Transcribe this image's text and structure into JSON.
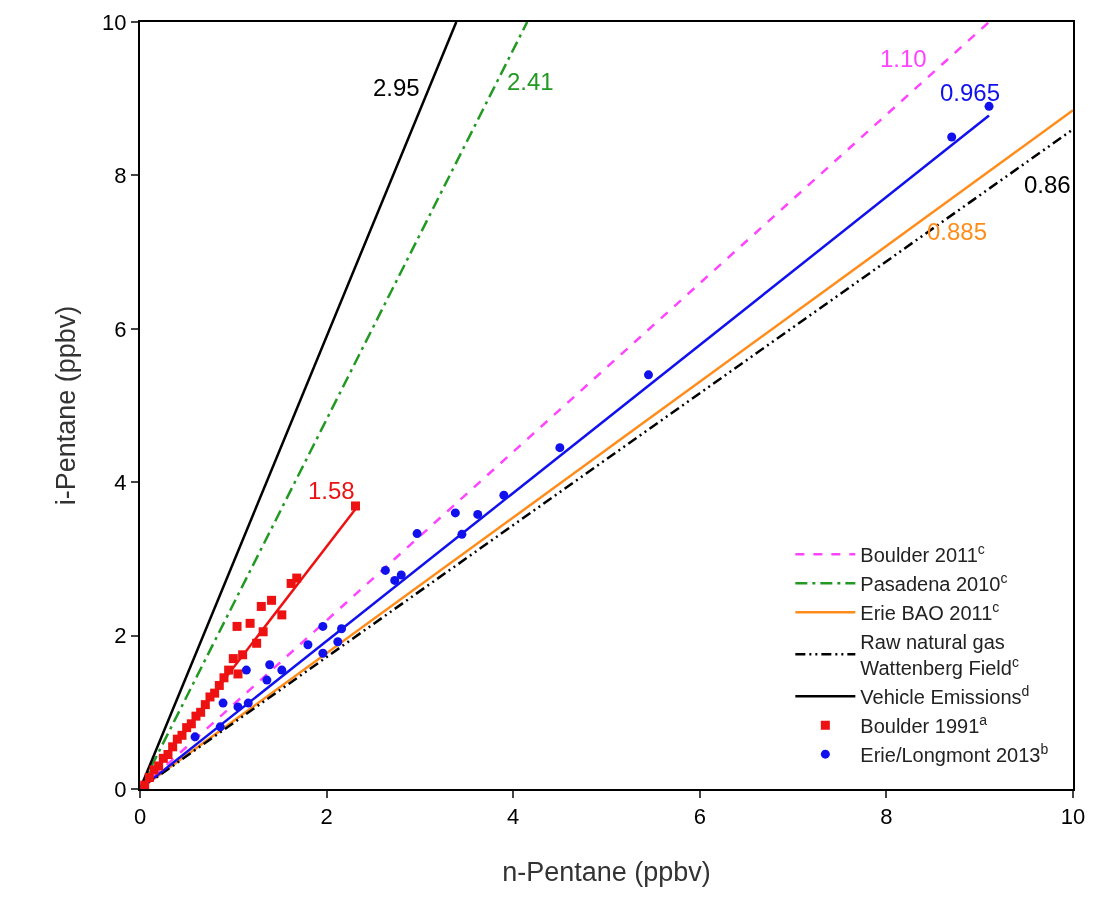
{
  "chart_data": {
    "type": "scatter",
    "xlabel": "n-Pentane (ppbv)",
    "ylabel": "i-Pentane (ppbv)",
    "xlim": [
      0,
      10
    ],
    "ylim": [
      0,
      10
    ],
    "xticks": [
      0,
      2,
      4,
      6,
      8,
      10
    ],
    "yticks": [
      0,
      2,
      4,
      6,
      8,
      10
    ],
    "grid": false,
    "legend": "bottom right",
    "series": [
      {
        "name": "Boulder 1991$^{a}$",
        "marker": "square",
        "color": "#ee1111",
        "x": [
          2.31,
          1.68,
          1.62,
          1.41,
          1.3,
          1.52,
          1.04,
          1.18,
          1.32,
          1.25,
          1.1,
          1.0,
          0.95,
          0.9,
          1.05,
          0.85,
          0.8,
          0.75,
          0.7,
          0.65,
          0.6,
          0.55,
          0.5,
          0.45,
          0.4,
          0.35,
          0.3,
          0.25,
          0.2,
          0.15,
          0.1,
          0.05
        ],
        "values": [
          3.69,
          2.75,
          2.68,
          2.46,
          2.38,
          2.27,
          2.12,
          2.16,
          2.05,
          1.9,
          1.75,
          1.7,
          1.55,
          1.45,
          1.5,
          1.35,
          1.25,
          1.2,
          1.1,
          1.0,
          0.95,
          0.85,
          0.8,
          0.7,
          0.65,
          0.55,
          0.45,
          0.4,
          0.3,
          0.25,
          0.15,
          0.05
        ]
      },
      {
        "name": "Erie/Longmont 2013$^{b}$",
        "marker": "circle",
        "color": "#1111ee",
        "x": [
          9.1,
          8.7,
          5.45,
          4.5,
          3.9,
          3.62,
          3.38,
          3.45,
          2.97,
          2.8,
          2.73,
          2.63,
          2.16,
          1.96,
          1.8,
          1.52,
          1.39,
          1.36,
          1.14,
          1.16,
          1.05,
          0.89,
          0.86,
          0.59,
          1.96,
          2.12
        ],
        "values": [
          8.9,
          8.5,
          5.4,
          4.45,
          3.83,
          3.58,
          3.6,
          3.32,
          3.33,
          2.79,
          2.72,
          2.85,
          2.09,
          2.12,
          1.88,
          1.55,
          1.62,
          1.42,
          1.55,
          1.12,
          1.07,
          1.12,
          0.81,
          0.68,
          1.77,
          1.92
        ]
      },
      {
        "name": "Boulder 2011$^{c}$",
        "type": "line",
        "line_style": "dashed",
        "color": "#ff44ff",
        "x": [
          0,
          9.1
        ],
        "values": [
          0,
          10
        ]
      },
      {
        "name": "Pasadena 2010$^{c}$",
        "type": "line",
        "line_style": "dashdot",
        "color": "#229922",
        "x": [
          0,
          4.15
        ],
        "values": [
          0,
          10
        ]
      },
      {
        "name": "Erie BAO 2011$^{c}$",
        "type": "line",
        "line_style": "solid",
        "color": "#ff8c1a",
        "x": [
          0,
          10
        ],
        "values": [
          0,
          8.85
        ]
      },
      {
        "name": "Raw natural gas\nWattenberg Field$^{c}$",
        "type": "line",
        "line_style": "dashdotdot",
        "color": "#000000",
        "x": [
          0,
          10
        ],
        "values": [
          0,
          8.6
        ]
      },
      {
        "name": "Vehicle Emissions$^{d}$",
        "type": "line",
        "line_style": "solid",
        "color": "#000000",
        "x": [
          0,
          3.39
        ],
        "values": [
          0,
          10
        ]
      },
      {
        "type": "line",
        "line_style": "solid",
        "color": "#ee1111",
        "x": [
          0,
          2.31
        ],
        "values": [
          0,
          3.65
        ]
      },
      {
        "type": "line",
        "line_style": "solid",
        "color": "#1111ee",
        "x": [
          0,
          9.1
        ],
        "values": [
          0,
          8.78
        ]
      }
    ],
    "annotations": [
      {
        "text": "2.95",
        "x": 3.05,
        "y": 9.0
      },
      {
        "text": "2.41",
        "x": 3.9,
        "y": 9.4
      },
      {
        "text": "1.10",
        "x": 8.4,
        "y": 9.24
      },
      {
        "text": "0.965",
        "x": 9.1,
        "y": 8.78
      },
      {
        "text": "0.86",
        "x": 9.54,
        "y": 8.2
      },
      {
        "text": "0.885",
        "x": 8.57,
        "y": 7.58
      },
      {
        "text": "1.58",
        "x": 2.31,
        "y": 3.65
      }
    ]
  }
}
